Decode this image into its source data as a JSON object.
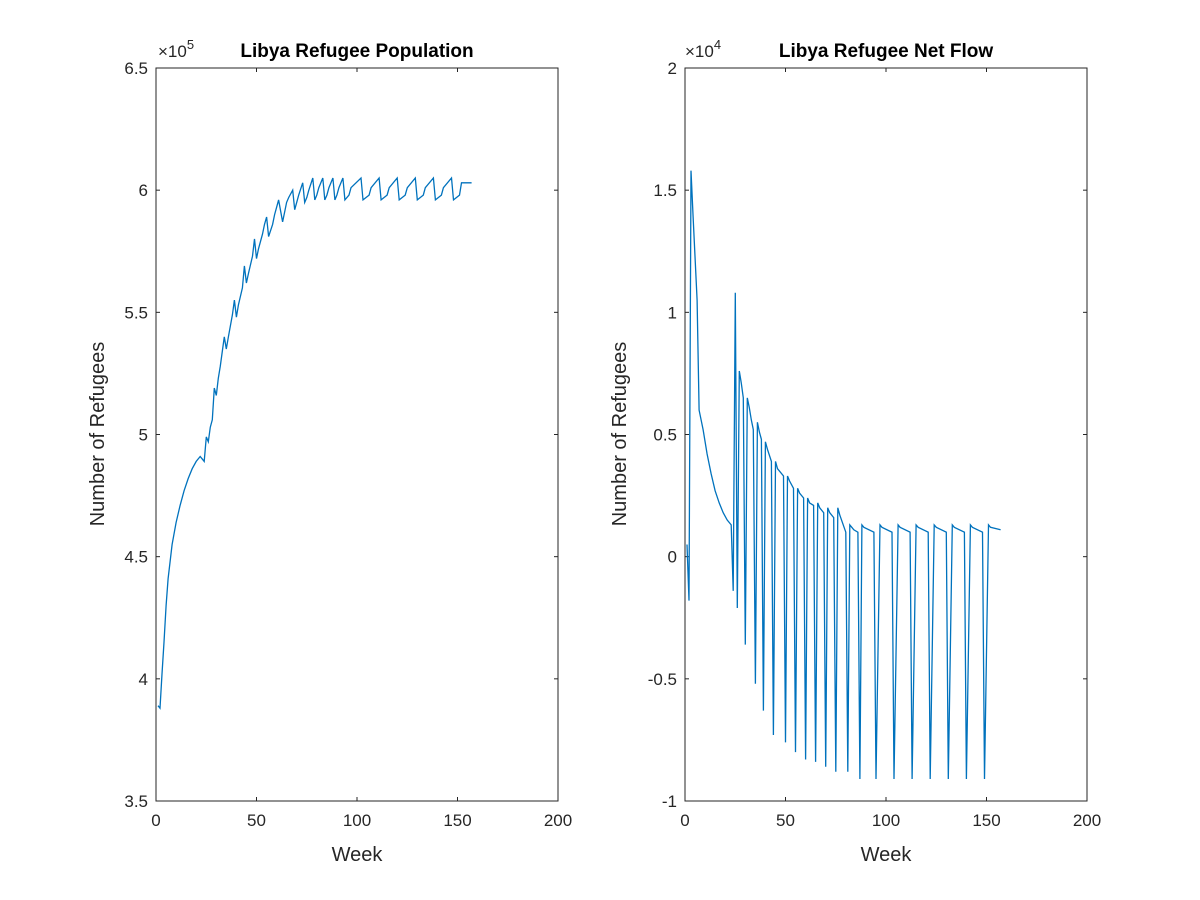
{
  "chart_data": [
    {
      "type": "line",
      "title": "Libya Refugee Population",
      "xlabel": "Week",
      "ylabel": "Number of Refugees",
      "xlim": [
        0,
        200
      ],
      "ylim": [
        3.5,
        6.5
      ],
      "y_multiplier": "×10",
      "y_exponent": "5",
      "grid": false,
      "xticks": [
        0,
        50,
        100,
        150,
        200
      ],
      "xtick_labels": [
        "0",
        "50",
        "100",
        "150",
        "200"
      ],
      "yticks": [
        3.5,
        4,
        4.5,
        5,
        5.5,
        6,
        6.5
      ],
      "ytick_labels": [
        "3.5",
        "4",
        "4.5",
        "5",
        "5.5",
        "6",
        "6.5"
      ],
      "series": [
        {
          "color": "#0072BD",
          "x": [
            1,
            2,
            3,
            4,
            5,
            6,
            8,
            10,
            12,
            14,
            16,
            18,
            20,
            22,
            23,
            24,
            25,
            26,
            27,
            28,
            29,
            30,
            31,
            32,
            33,
            34,
            35,
            36,
            38,
            39,
            40,
            41,
            43,
            44,
            45,
            46,
            48,
            49,
            50,
            51,
            53,
            54,
            55,
            56,
            58,
            59,
            60,
            61,
            63,
            64,
            65,
            66,
            68,
            69,
            70,
            71,
            73,
            74,
            75,
            76,
            78,
            79,
            80,
            81,
            83,
            84,
            85,
            86,
            88,
            89,
            90,
            91,
            93,
            94,
            96,
            97,
            102,
            103,
            106,
            107,
            111,
            112,
            115,
            116,
            120,
            121,
            124,
            125,
            129,
            130,
            133,
            134,
            138,
            139,
            142,
            143,
            147,
            148,
            151,
            152,
            157
          ],
          "y": [
            3.89,
            3.88,
            4.02,
            4.15,
            4.3,
            4.41,
            4.55,
            4.64,
            4.71,
            4.77,
            4.82,
            4.86,
            4.89,
            4.91,
            4.9,
            4.89,
            4.99,
            4.97,
            5.03,
            5.06,
            5.19,
            5.16,
            5.23,
            5.28,
            5.34,
            5.4,
            5.35,
            5.4,
            5.49,
            5.55,
            5.48,
            5.53,
            5.6,
            5.69,
            5.62,
            5.66,
            5.73,
            5.8,
            5.72,
            5.76,
            5.82,
            5.86,
            5.89,
            5.81,
            5.86,
            5.9,
            5.93,
            5.96,
            5.87,
            5.91,
            5.95,
            5.97,
            6.0,
            5.92,
            5.95,
            5.98,
            6.03,
            5.95,
            5.97,
            6.0,
            6.05,
            5.96,
            5.98,
            6.01,
            6.05,
            5.96,
            5.98,
            6.01,
            6.05,
            5.96,
            5.98,
            6.01,
            6.05,
            5.96,
            5.98,
            6.01,
            6.05,
            5.96,
            5.98,
            6.01,
            6.05,
            5.96,
            5.98,
            6.01,
            6.05,
            5.96,
            5.98,
            6.01,
            6.05,
            5.96,
            5.98,
            6.01,
            6.05,
            5.96,
            5.98,
            6.01,
            6.05,
            5.96,
            5.98,
            6.03,
            6.03
          ]
        }
      ]
    },
    {
      "type": "line",
      "title": "Libya Refugee Net Flow",
      "xlabel": "Week",
      "ylabel": "Number of Refugees",
      "xlim": [
        0,
        200
      ],
      "ylim": [
        -1,
        2
      ],
      "y_multiplier": "×10",
      "y_exponent": "4",
      "grid": false,
      "xticks": [
        0,
        50,
        100,
        150,
        200
      ],
      "xtick_labels": [
        "0",
        "50",
        "100",
        "150",
        "200"
      ],
      "yticks": [
        -1,
        -0.5,
        0,
        0.5,
        1,
        1.5,
        2
      ],
      "ytick_labels": [
        "-1",
        "-0.5",
        "0",
        "0.5",
        "1",
        "1.5",
        "2"
      ],
      "series": [
        {
          "color": "#0072BD",
          "x": [
            1,
            2,
            3,
            4,
            6,
            7,
            9,
            11,
            13,
            15,
            17,
            19,
            21,
            23,
            24,
            25,
            26,
            27,
            28,
            29,
            30,
            31,
            32,
            33,
            34,
            35,
            36,
            37,
            38,
            39,
            40,
            41,
            43,
            44,
            45,
            46,
            49,
            50,
            51,
            52,
            54,
            55,
            56,
            57,
            59,
            60,
            61,
            62,
            64,
            65,
            66,
            67,
            69,
            70,
            71,
            72,
            74,
            75,
            76,
            77,
            80,
            81,
            82,
            83,
            84,
            86,
            87,
            88,
            89,
            94,
            95,
            97,
            98,
            103,
            104,
            106,
            107,
            112,
            113,
            115,
            116,
            121,
            122,
            124,
            125,
            130,
            131,
            133,
            134,
            139,
            140,
            142,
            143,
            148,
            149,
            151,
            152,
            157
          ],
          "y": [
            0.05,
            -0.18,
            1.58,
            1.4,
            1.05,
            0.6,
            0.52,
            0.42,
            0.34,
            0.27,
            0.22,
            0.18,
            0.15,
            0.13,
            -0.14,
            1.08,
            -0.21,
            0.76,
            0.71,
            0.65,
            -0.36,
            0.65,
            0.61,
            0.56,
            0.52,
            -0.52,
            0.55,
            0.51,
            0.48,
            -0.63,
            0.47,
            0.44,
            0.39,
            -0.73,
            0.39,
            0.36,
            0.33,
            -0.76,
            0.33,
            0.31,
            0.28,
            -0.8,
            0.28,
            0.26,
            0.24,
            -0.83,
            0.24,
            0.22,
            0.21,
            -0.84,
            0.22,
            0.2,
            0.18,
            -0.86,
            0.2,
            0.18,
            0.16,
            -0.88,
            0.2,
            0.17,
            0.1,
            -0.88,
            0.13,
            0.12,
            0.11,
            0.1,
            -0.91,
            0.13,
            0.12,
            0.1,
            -0.91,
            0.13,
            0.12,
            0.1,
            -0.91,
            0.13,
            0.12,
            0.1,
            -0.91,
            0.13,
            0.12,
            0.1,
            -0.91,
            0.13,
            0.12,
            0.1,
            -0.91,
            0.13,
            0.12,
            0.1,
            -0.91,
            0.13,
            0.12,
            0.1,
            -0.91,
            0.13,
            0.12,
            0.11
          ]
        }
      ]
    }
  ]
}
